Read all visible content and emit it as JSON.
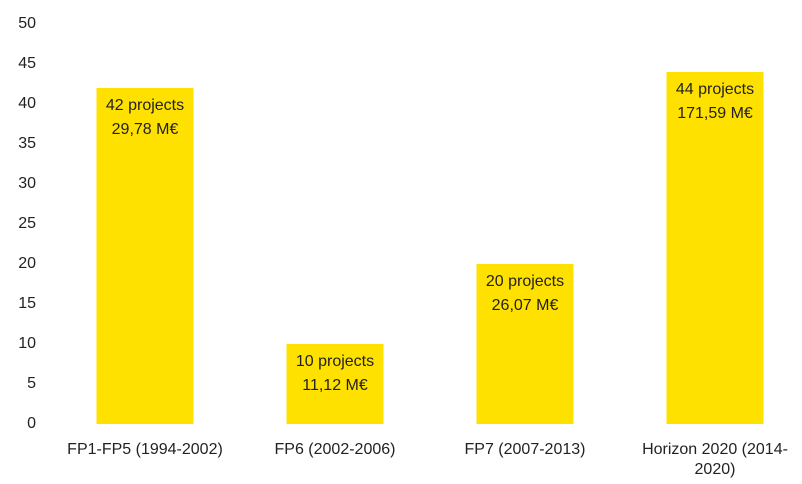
{
  "chart_data": {
    "type": "bar",
    "categories": [
      "FP1-FP5 (1994-2002)",
      "FP6 (2002-2006)",
      "FP7 (2007-2013)",
      "Horizon 2020 (2014-2020)"
    ],
    "values": [
      42,
      10,
      20,
      44
    ],
    "value_labels": [
      "42 projects",
      "10 projects",
      "20 projects",
      "44 projects"
    ],
    "annotations": [
      "29,78 M€",
      "11,12 M€",
      "26,07 M€",
      "171,59 M€"
    ],
    "color": "#ffe100",
    "ylim": [
      0,
      50
    ],
    "yticks": [
      0,
      5,
      10,
      15,
      20,
      25,
      30,
      35,
      40,
      45,
      50
    ],
    "grid": false
  }
}
